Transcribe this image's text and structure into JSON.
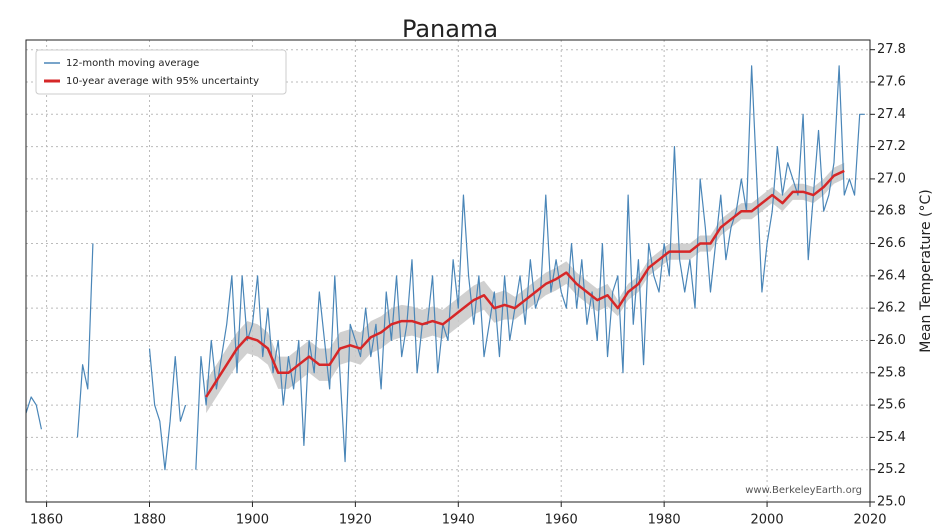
{
  "chart_data": {
    "type": "line",
    "title": "Panama",
    "y_label": "Mean Temperature (°C)",
    "watermark": "www.BerkeleyEarth.org",
    "xlim": [
      1856,
      2020
    ],
    "xticks": [
      1860,
      1880,
      1900,
      1920,
      1940,
      1960,
      1980,
      2000,
      2020
    ],
    "ylim": [
      25.0,
      27.86
    ],
    "yticks": [
      {
        "value": 25.0,
        "label": "25.0"
      },
      25.2,
      25.4,
      25.6,
      25.8,
      {
        "value": 26.0,
        "label": "26.0"
      },
      26.2,
      26.4,
      26.6,
      26.8,
      {
        "value": 27.0,
        "label": "27.0"
      },
      27.2,
      27.4,
      27.6,
      27.8
    ],
    "grid": true,
    "legend": "upper left",
    "series": [
      {
        "name": "12-month moving average",
        "color": "#4a86b8",
        "x": [
          1856,
          1857,
          1858,
          1859,
          1860,
          1861,
          1862,
          1863,
          1864,
          1865,
          1866,
          1867,
          1868,
          1869,
          1870,
          1871,
          1872,
          1873,
          1874,
          1875,
          1876,
          1877,
          1878,
          1879,
          1880,
          1881,
          1882,
          1883,
          1884,
          1885,
          1886,
          1887,
          1888,
          1889,
          1890,
          1891,
          1892,
          1893,
          1894,
          1895,
          1896,
          1897,
          1898,
          1899,
          1900,
          1901,
          1902,
          1903,
          1904,
          1905,
          1906,
          1907,
          1908,
          1909,
          1910,
          1911,
          1912,
          1913,
          1914,
          1915,
          1916,
          1917,
          1918,
          1919,
          1920,
          1921,
          1922,
          1923,
          1924,
          1925,
          1926,
          1927,
          1928,
          1929,
          1930,
          1931,
          1932,
          1933,
          1934,
          1935,
          1936,
          1937,
          1938,
          1939,
          1940,
          1941,
          1942,
          1943,
          1944,
          1945,
          1946,
          1947,
          1948,
          1949,
          1950,
          1951,
          1952,
          1953,
          1954,
          1955,
          1956,
          1957,
          1958,
          1959,
          1960,
          1961,
          1962,
          1963,
          1964,
          1965,
          1966,
          1967,
          1968,
          1969,
          1970,
          1971,
          1972,
          1973,
          1974,
          1975,
          1976,
          1977,
          1978,
          1979,
          1980,
          1981,
          1982,
          1983,
          1984,
          1985,
          1986,
          1987,
          1988,
          1989,
          1990,
          1991,
          1992,
          1993,
          1994,
          1995,
          1996,
          1997,
          1998,
          1999,
          2000,
          2001,
          2002,
          2003,
          2004,
          2005,
          2006,
          2007,
          2008,
          2009,
          2010,
          2011,
          2012,
          2013,
          2014,
          2015,
          2016,
          2017,
          2018,
          2019
        ],
        "values": [
          25.55,
          25.65,
          25.6,
          25.45,
          null,
          null,
          null,
          25.65,
          null,
          null,
          25.4,
          25.85,
          25.7,
          26.6,
          null,
          null,
          null,
          null,
          null,
          null,
          null,
          null,
          null,
          null,
          25.95,
          25.6,
          25.5,
          25.2,
          25.5,
          25.9,
          25.5,
          25.6,
          null,
          25.2,
          25.9,
          25.6,
          26.0,
          25.7,
          25.9,
          26.1,
          26.4,
          25.8,
          26.4,
          26.0,
          26.1,
          26.4,
          25.9,
          26.2,
          25.8,
          26.0,
          25.6,
          25.9,
          25.7,
          26.0,
          25.35,
          26.0,
          25.8,
          26.3,
          26.0,
          25.7,
          26.4,
          25.8,
          25.25,
          26.1,
          26.0,
          25.9,
          26.2,
          25.9,
          26.1,
          25.7,
          26.3,
          26.0,
          26.4,
          25.9,
          26.1,
          26.5,
          25.8,
          26.1,
          26.1,
          26.4,
          25.8,
          26.1,
          26.0,
          26.5,
          26.2,
          26.9,
          26.4,
          26.1,
          26.4,
          25.9,
          26.1,
          26.3,
          25.9,
          26.4,
          26.0,
          26.2,
          26.4,
          26.1,
          26.5,
          26.2,
          26.3,
          26.9,
          26.3,
          26.5,
          26.3,
          26.2,
          26.6,
          26.2,
          26.5,
          26.1,
          26.3,
          26.0,
          26.6,
          25.9,
          26.3,
          26.4,
          25.8,
          26.9,
          26.1,
          26.5,
          25.85,
          26.6,
          26.4,
          26.3,
          26.6,
          26.4,
          27.2,
          26.5,
          26.3,
          26.5,
          26.2,
          27.0,
          26.7,
          26.3,
          26.6,
          26.9,
          26.5,
          26.7,
          26.8,
          27.0,
          26.8,
          27.7,
          27.0,
          26.3,
          26.6,
          26.8,
          27.2,
          26.9,
          27.1,
          27.0,
          26.9,
          27.4,
          26.5,
          26.9,
          27.3,
          26.8,
          26.9,
          27.1,
          27.7,
          26.9,
          27.0,
          26.9,
          27.4,
          27.4
        ]
      },
      {
        "name": "10-year average with 95% uncertainty",
        "color": "#d62728",
        "band_color": "#c8c8c8",
        "x": [
          1891,
          1893,
          1895,
          1897,
          1899,
          1901,
          1903,
          1905,
          1907,
          1909,
          1911,
          1913,
          1915,
          1917,
          1919,
          1921,
          1923,
          1925,
          1927,
          1929,
          1931,
          1933,
          1935,
          1937,
          1939,
          1941,
          1943,
          1945,
          1947,
          1949,
          1951,
          1953,
          1955,
          1957,
          1959,
          1961,
          1963,
          1965,
          1967,
          1969,
          1971,
          1973,
          1975,
          1977,
          1979,
          1981,
          1983,
          1985,
          1987,
          1989,
          1991,
          1993,
          1995,
          1997,
          1999,
          2001,
          2003,
          2005,
          2007,
          2009,
          2011,
          2013,
          2015
        ],
        "values": [
          25.65,
          25.75,
          25.85,
          25.95,
          26.02,
          26.0,
          25.95,
          25.8,
          25.8,
          25.85,
          25.9,
          25.85,
          25.85,
          25.95,
          25.97,
          25.95,
          26.02,
          26.05,
          26.1,
          26.12,
          26.12,
          26.1,
          26.12,
          26.1,
          26.15,
          26.2,
          26.25,
          26.28,
          26.2,
          26.22,
          26.2,
          26.25,
          26.3,
          26.35,
          26.38,
          26.42,
          26.35,
          26.3,
          26.25,
          26.28,
          26.2,
          26.3,
          26.35,
          26.45,
          26.5,
          26.55,
          26.55,
          26.55,
          26.6,
          26.6,
          26.7,
          26.75,
          26.8,
          26.8,
          26.85,
          26.9,
          26.85,
          26.92,
          26.92,
          26.9,
          26.95,
          27.02,
          27.05
        ],
        "uncertainty": [
          0.1,
          0.1,
          0.1,
          0.1,
          0.1,
          0.1,
          0.1,
          0.1,
          0.1,
          0.1,
          0.1,
          0.1,
          0.1,
          0.1,
          0.1,
          0.1,
          0.1,
          0.1,
          0.1,
          0.1,
          0.09,
          0.09,
          0.09,
          0.09,
          0.09,
          0.09,
          0.09,
          0.09,
          0.09,
          0.09,
          0.07,
          0.07,
          0.07,
          0.07,
          0.07,
          0.07,
          0.07,
          0.07,
          0.07,
          0.07,
          0.05,
          0.05,
          0.05,
          0.05,
          0.05,
          0.05,
          0.05,
          0.05,
          0.05,
          0.05,
          0.05,
          0.05,
          0.05,
          0.05,
          0.05,
          0.05,
          0.05,
          0.05,
          0.05,
          0.05,
          0.05,
          0.05,
          0.05
        ]
      }
    ]
  }
}
